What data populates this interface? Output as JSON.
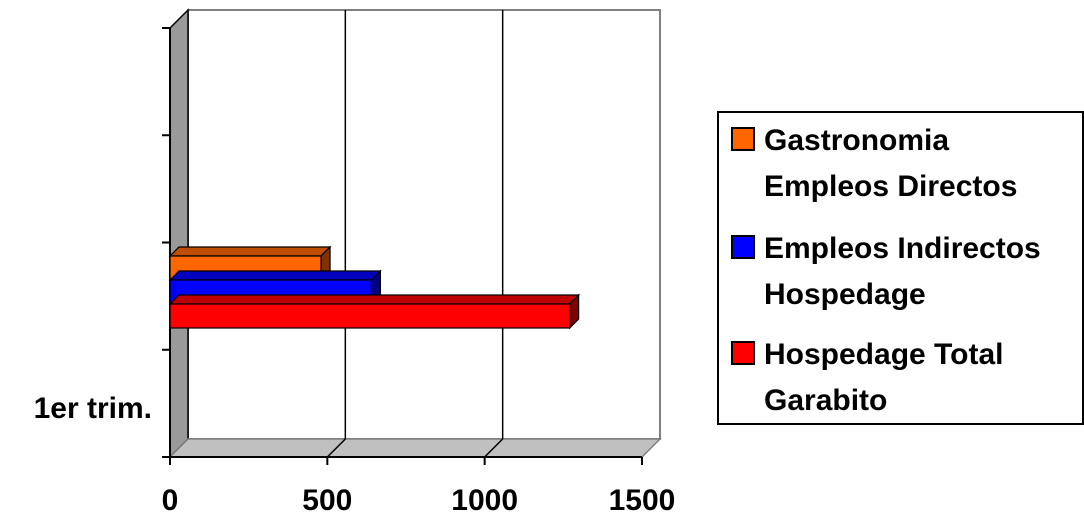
{
  "chart_data": {
    "type": "bar",
    "orientation": "horizontal",
    "three_d": true,
    "categories": [
      "1er trim."
    ],
    "series": [
      {
        "name": "Gastronomia Empleos Directos",
        "values": [
          480
        ],
        "color": "#ff6600"
      },
      {
        "name": "Empleos Indirectos Hospedage",
        "values": [
          640
        ],
        "color": "#0000ff"
      },
      {
        "name": "Hospedage Total Garabito",
        "values": [
          1270
        ],
        "color": "#ff0000"
      }
    ],
    "x_ticks": [
      "0",
      "500",
      "1000",
      "1500"
    ],
    "xlim": [
      0,
      1500
    ],
    "grid": true,
    "legend_position": "right",
    "legend_lines": [
      [
        "Gastronomia",
        "Empleos Directos"
      ],
      [
        "Empleos Indirectos",
        "Hospedage"
      ],
      [
        "Hospedage Total",
        "Garabito"
      ]
    ],
    "title": "",
    "xlabel": "",
    "ylabel": ""
  }
}
